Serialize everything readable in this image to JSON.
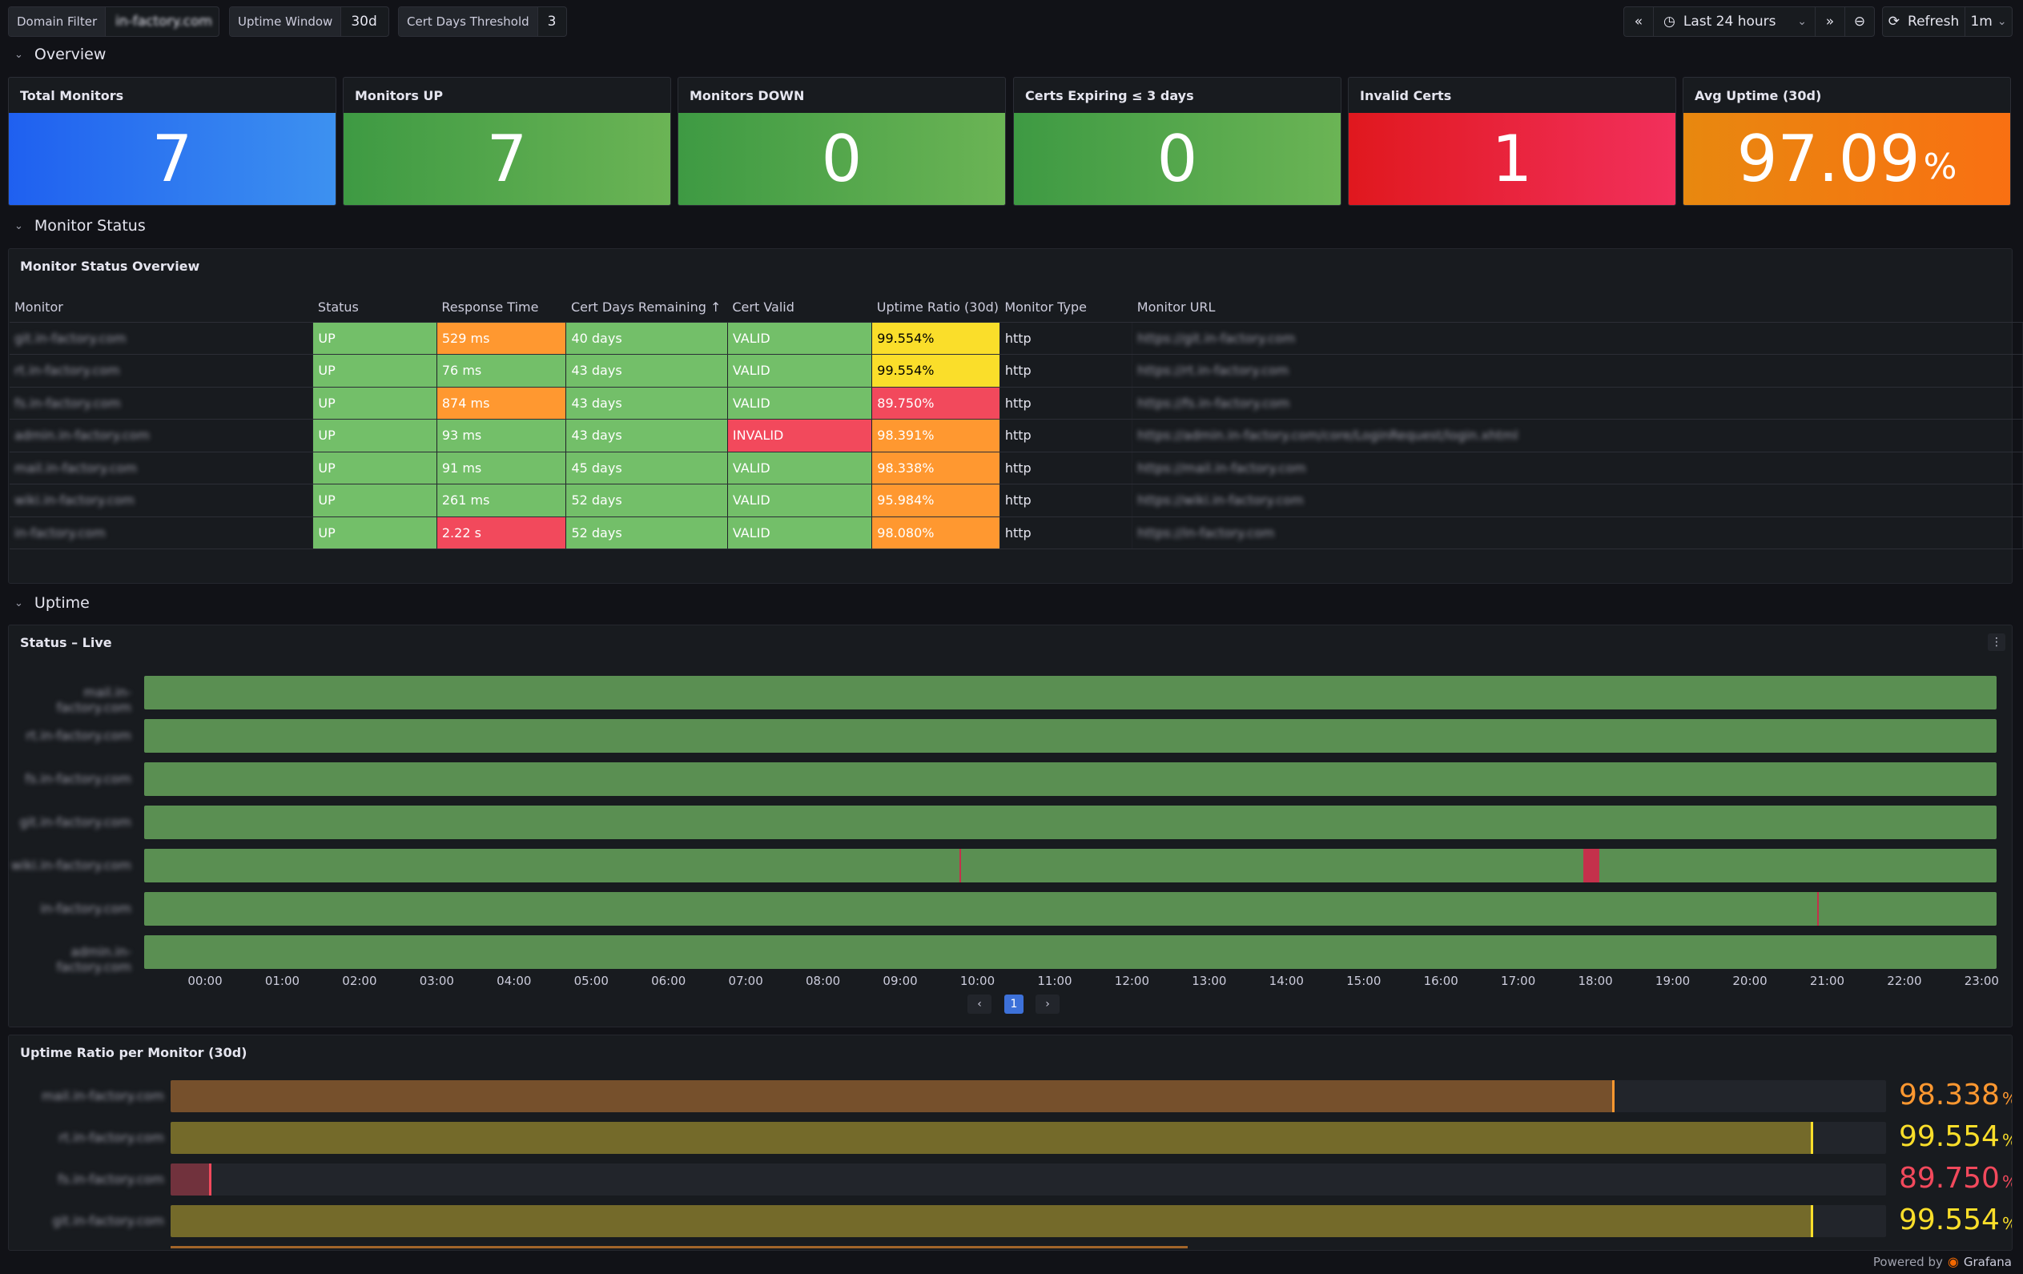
{
  "toolbar": {
    "domain_filter": {
      "label": "Domain Filter",
      "value": "in-factory.com"
    },
    "uptime_window": {
      "label": "Uptime Window",
      "value": "30d"
    },
    "cert_threshold": {
      "label": "Cert Days Threshold",
      "value": "3"
    },
    "time_range": "Last 24 hours",
    "refresh_label": "Refresh",
    "refresh_interval": "1m"
  },
  "rows": {
    "overview": "Overview",
    "monitor_status": "Monitor Status",
    "uptime": "Uptime"
  },
  "stats": [
    {
      "title": "Total Monitors",
      "value": "7",
      "unit": "",
      "color_from": "#1f60f0",
      "color_to": "#3d91f0"
    },
    {
      "title": "Monitors UP",
      "value": "7",
      "unit": "",
      "color_from": "#3e9a43",
      "color_to": "#6bb455"
    },
    {
      "title": "Monitors DOWN",
      "value": "0",
      "unit": "",
      "color_from": "#3e9a43",
      "color_to": "#6bb455"
    },
    {
      "title": "Certs Expiring ≤ 3 days",
      "value": "0",
      "unit": "",
      "color_from": "#3e9a43",
      "color_to": "#6bb455"
    },
    {
      "title": "Invalid Certs",
      "value": "1",
      "unit": "",
      "color_from": "#e0181e",
      "color_to": "#f2305c"
    },
    {
      "title": "Avg Uptime (30d)",
      "value": "97.09",
      "unit": "%",
      "color_from": "#e8880f",
      "color_to": "#f97012"
    }
  ],
  "status_table": {
    "title": "Monitor Status Overview",
    "columns": [
      "Monitor",
      "Status",
      "Response Time",
      "Cert Days Remaining ↑",
      "Cert Valid",
      "Uptime Ratio (30d)",
      "Monitor Type",
      "Monitor URL"
    ],
    "rows": [
      {
        "monitor": "git.in-factory.com",
        "status": "UP",
        "response": "529 ms",
        "resp_color": "orange",
        "cert_days": "40 days",
        "cert_valid": "VALID",
        "valid_color": "green",
        "uptime": "99.554%",
        "uptime_color": "yellow",
        "type": "http",
        "url": "https://git.in-factory.com"
      },
      {
        "monitor": "rt.in-factory.com",
        "status": "UP",
        "response": "76 ms",
        "resp_color": "green",
        "cert_days": "43 days",
        "cert_valid": "VALID",
        "valid_color": "green",
        "uptime": "99.554%",
        "uptime_color": "yellow",
        "type": "http",
        "url": "https://rt.in-factory.com"
      },
      {
        "monitor": "fs.in-factory.com",
        "status": "UP",
        "response": "874 ms",
        "resp_color": "orange",
        "cert_days": "43 days",
        "cert_valid": "VALID",
        "valid_color": "green",
        "uptime": "89.750%",
        "uptime_color": "red",
        "type": "http",
        "url": "https://fs.in-factory.com"
      },
      {
        "monitor": "admin.in-factory.com",
        "status": "UP",
        "response": "93 ms",
        "resp_color": "green",
        "cert_days": "43 days",
        "cert_valid": "INVALID",
        "valid_color": "red",
        "uptime": "98.391%",
        "uptime_color": "orange",
        "type": "http",
        "url": "https://admin.in-factory.com/core/LoginRequest/login.xhtml"
      },
      {
        "monitor": "mail.in-factory.com",
        "status": "UP",
        "response": "91 ms",
        "resp_color": "green",
        "cert_days": "45 days",
        "cert_valid": "VALID",
        "valid_color": "green",
        "uptime": "98.338%",
        "uptime_color": "orange",
        "type": "http",
        "url": "https://mail.in-factory.com"
      },
      {
        "monitor": "wiki.in-factory.com",
        "status": "UP",
        "response": "261 ms",
        "resp_color": "green",
        "cert_days": "52 days",
        "cert_valid": "VALID",
        "valid_color": "green",
        "uptime": "95.984%",
        "uptime_color": "orange",
        "type": "http",
        "url": "https://wiki.in-factory.com"
      },
      {
        "monitor": "in-factory.com",
        "status": "UP",
        "response": "2.22 s",
        "resp_color": "red",
        "cert_days": "52 days",
        "cert_valid": "VALID",
        "valid_color": "green",
        "uptime": "98.080%",
        "uptime_color": "orange",
        "type": "http",
        "url": "https://in-factory.com"
      }
    ]
  },
  "timeline": {
    "title": "Status – Live",
    "rows": [
      {
        "name": "mail.in-factory.com",
        "down": []
      },
      {
        "name": "rt.in-factory.com",
        "down": []
      },
      {
        "name": "fs.in-factory.com",
        "down": []
      },
      {
        "name": "git.in-factory.com",
        "down": []
      },
      {
        "name": "wiki.in-factory.com",
        "down": [
          [
            10.56,
            10.58
          ],
          [
            18.65,
            18.85
          ]
        ]
      },
      {
        "name": "in-factory.com",
        "down": [
          [
            21.68,
            21.7
          ]
        ]
      },
      {
        "name": "admin.in-factory.com",
        "down": []
      }
    ],
    "ticks": [
      "00:00",
      "01:00",
      "02:00",
      "03:00",
      "04:00",
      "05:00",
      "06:00",
      "07:00",
      "08:00",
      "09:00",
      "10:00",
      "11:00",
      "12:00",
      "13:00",
      "14:00",
      "15:00",
      "16:00",
      "17:00",
      "18:00",
      "19:00",
      "20:00",
      "21:00",
      "22:00",
      "23:00"
    ],
    "page": "1",
    "up_color": "#5a8f52",
    "down_color": "#c4314b"
  },
  "bargauge": {
    "title": "Uptime Ratio per Monitor (30d)",
    "min": 89.5,
    "max": 100,
    "items": [
      {
        "name": "mail.in-factory.com",
        "value": 98.338,
        "display": "98.338",
        "unit": "%",
        "color": "#ff9830"
      },
      {
        "name": "rt.in-factory.com",
        "value": 99.554,
        "display": "99.554",
        "unit": "%",
        "color": "#fade2a"
      },
      {
        "name": "fs.in-factory.com",
        "value": 89.75,
        "display": "89.750",
        "unit": "%",
        "color": "#f2495c"
      },
      {
        "name": "git.in-factory.com",
        "value": 99.554,
        "display": "99.554",
        "unit": "%",
        "color": "#fade2a"
      }
    ]
  },
  "footer": {
    "powered_by": "Powered by",
    "brand": "Grafana"
  }
}
